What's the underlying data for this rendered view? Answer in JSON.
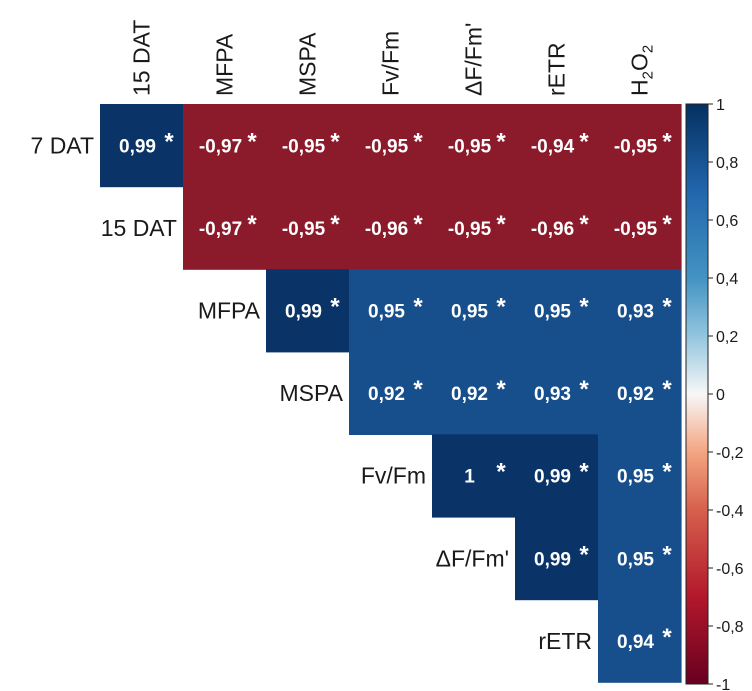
{
  "chart_data": {
    "type": "heatmap",
    "columns": [
      "15 DAT",
      "MFPA",
      "MSPA",
      "Fv/Fm",
      "ΔF/Fm'",
      "rETR",
      "H2O2"
    ],
    "rows": [
      "7 DAT",
      "15 DAT",
      "MFPA",
      "MSPA",
      "Fv/Fm",
      "ΔF/Fm'",
      "rETR"
    ],
    "cells": [
      [
        {
          "text": "0,99",
          "value": 0.99,
          "sig": true
        },
        {
          "text": "-0,97",
          "value": -0.97,
          "sig": true
        },
        {
          "text": "-0,95",
          "value": -0.95,
          "sig": true
        },
        {
          "text": "-0,95",
          "value": -0.95,
          "sig": true
        },
        {
          "text": "-0,95",
          "value": -0.95,
          "sig": true
        },
        {
          "text": "-0,94",
          "value": -0.94,
          "sig": true
        },
        {
          "text": "-0,95",
          "value": -0.95,
          "sig": true
        }
      ],
      [
        null,
        {
          "text": "-0,97",
          "value": -0.97,
          "sig": true
        },
        {
          "text": "-0,95",
          "value": -0.95,
          "sig": true
        },
        {
          "text": "-0,96",
          "value": -0.96,
          "sig": true
        },
        {
          "text": "-0,95",
          "value": -0.95,
          "sig": true
        },
        {
          "text": "-0,96",
          "value": -0.96,
          "sig": true
        },
        {
          "text": "-0,95",
          "value": -0.95,
          "sig": true
        }
      ],
      [
        null,
        null,
        {
          "text": "0,99",
          "value": 0.99,
          "sig": true
        },
        {
          "text": "0,95",
          "value": 0.95,
          "sig": true
        },
        {
          "text": "0,95",
          "value": 0.95,
          "sig": true
        },
        {
          "text": "0,95",
          "value": 0.95,
          "sig": true
        },
        {
          "text": "0,93",
          "value": 0.93,
          "sig": true
        }
      ],
      [
        null,
        null,
        null,
        {
          "text": "0,92",
          "value": 0.92,
          "sig": true
        },
        {
          "text": "0,92",
          "value": 0.92,
          "sig": true
        },
        {
          "text": "0,93",
          "value": 0.93,
          "sig": true
        },
        {
          "text": "0,92",
          "value": 0.92,
          "sig": true
        }
      ],
      [
        null,
        null,
        null,
        null,
        {
          "text": "1",
          "value": 1,
          "sig": true
        },
        {
          "text": "0,99",
          "value": 0.99,
          "sig": true
        },
        {
          "text": "0,95",
          "value": 0.95,
          "sig": true
        }
      ],
      [
        null,
        null,
        null,
        null,
        null,
        {
          "text": "0,99",
          "value": 0.99,
          "sig": true
        },
        {
          "text": "0,95",
          "value": 0.95,
          "sig": true
        }
      ],
      [
        null,
        null,
        null,
        null,
        null,
        null,
        {
          "text": "0,94",
          "value": 0.94,
          "sig": true
        }
      ]
    ],
    "significance_marker": "*",
    "colorbar": {
      "min": -1,
      "max": 1,
      "ticks": [
        "1",
        "0,8",
        "0,6",
        "0,4",
        "0,2",
        "0",
        "-0,2",
        "-0,4",
        "-0,6",
        "-0,8",
        "-1"
      ],
      "colors": {
        "negative": "#67001f",
        "mid_negative": "#d6604d",
        "zero": "#f7f7f7",
        "mid_positive": "#4393c3",
        "positive": "#053061"
      }
    }
  }
}
